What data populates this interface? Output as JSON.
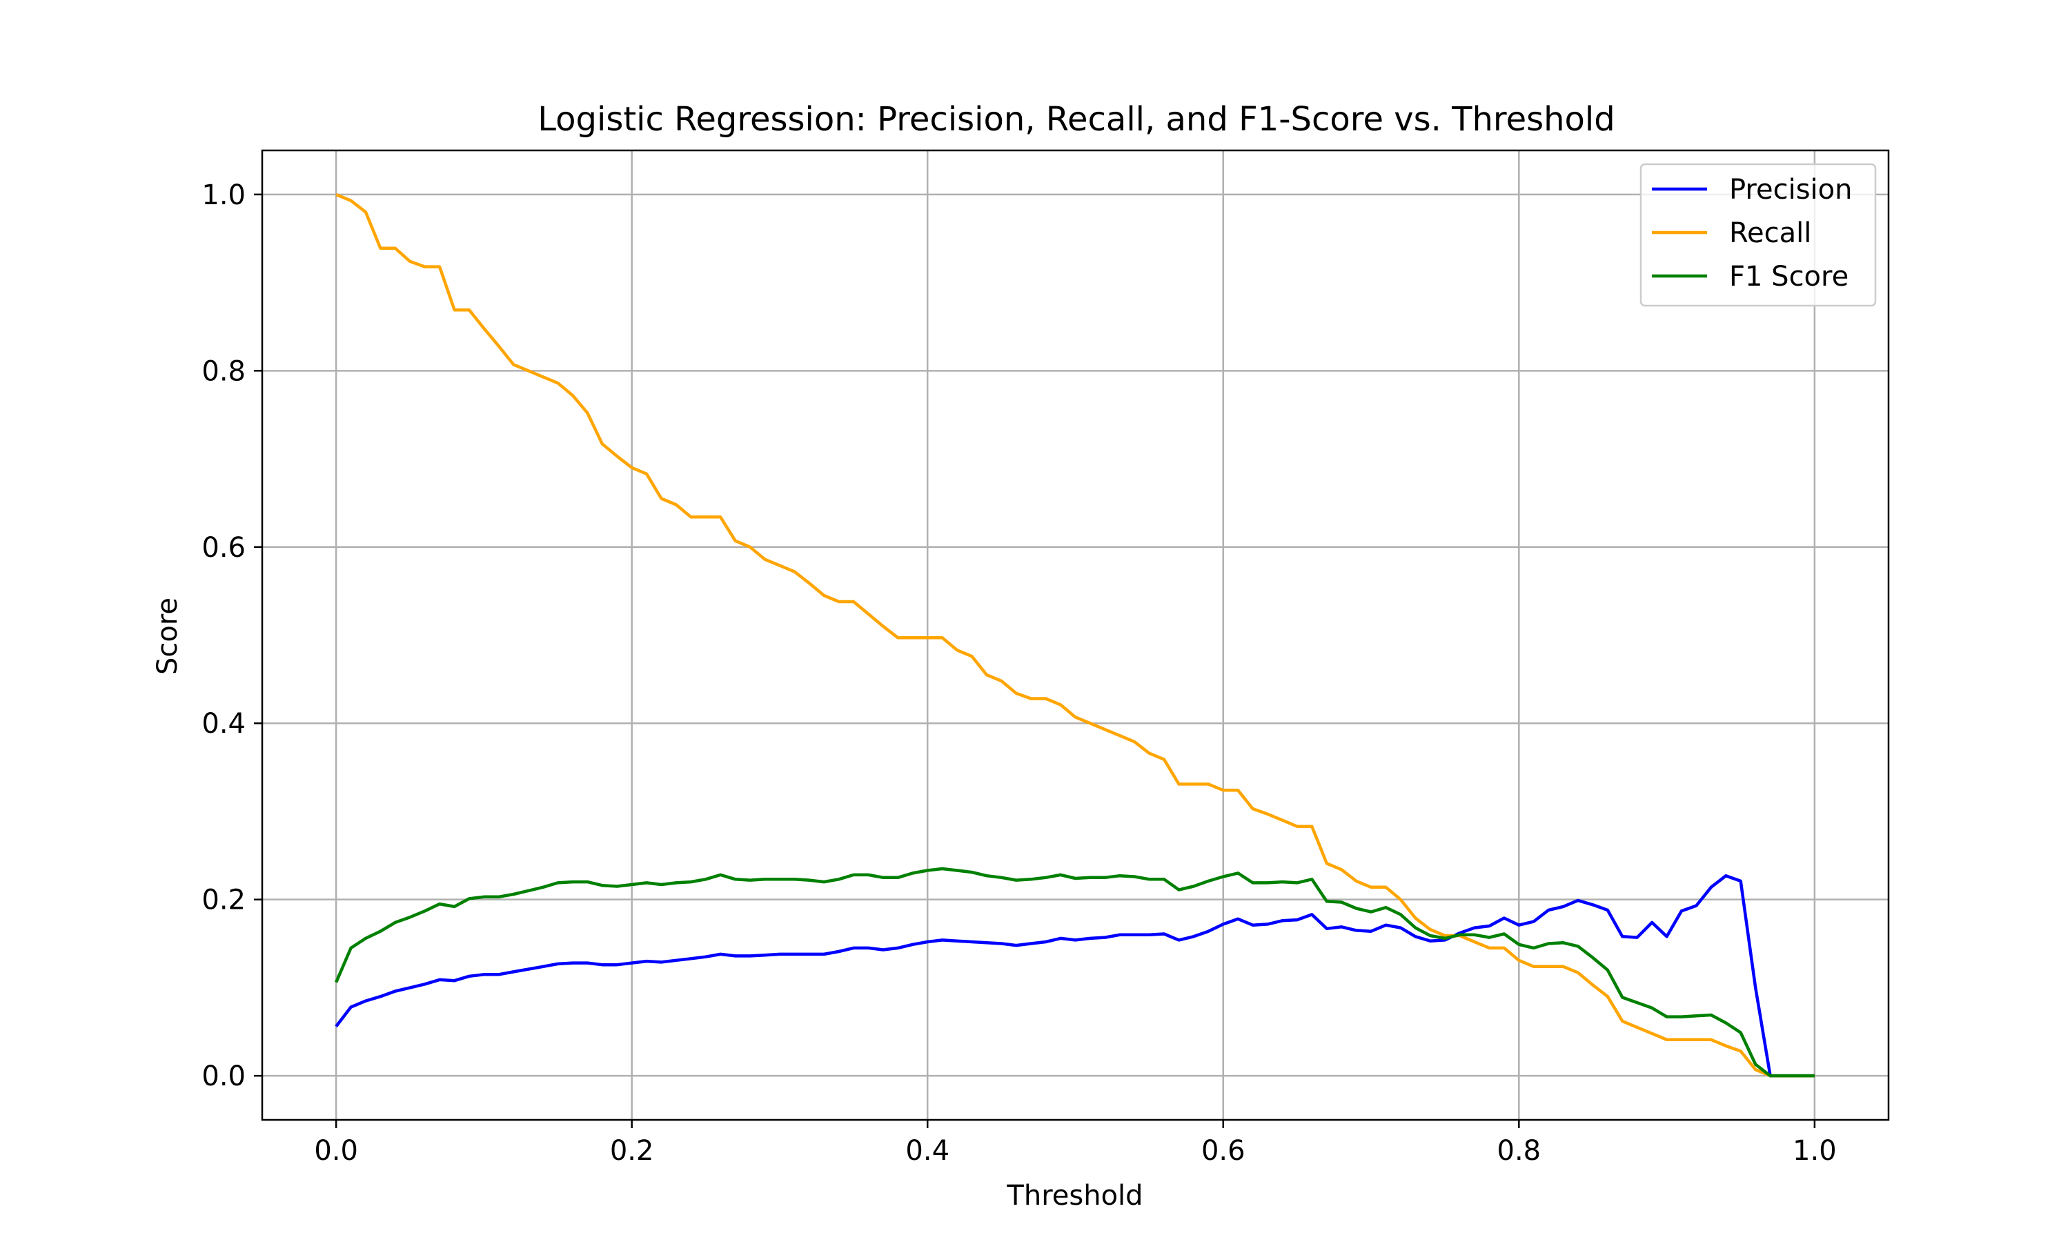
{
  "chart_data": {
    "type": "line",
    "title": "Logistic Regression: Precision, Recall, and F1-Score vs. Threshold",
    "xlabel": "Threshold",
    "ylabel": "Score",
    "xlim": [
      -0.05,
      1.05
    ],
    "ylim": [
      -0.05,
      1.05
    ],
    "xticks": [
      "0.0",
      "0.2",
      "0.4",
      "0.6",
      "0.8",
      "1.0"
    ],
    "yticks": [
      "0.0",
      "0.2",
      "0.4",
      "0.6",
      "0.8",
      "1.0"
    ],
    "grid": true,
    "legend_position": "top-right",
    "x": [
      0.0,
      0.01,
      0.02,
      0.03,
      0.04,
      0.05,
      0.06,
      0.07,
      0.08,
      0.09,
      0.1,
      0.11,
      0.12,
      0.13,
      0.14,
      0.15,
      0.16,
      0.17,
      0.18,
      0.19,
      0.2,
      0.21,
      0.22,
      0.23,
      0.24,
      0.25,
      0.26,
      0.27,
      0.28,
      0.29,
      0.3,
      0.31,
      0.32,
      0.33,
      0.34,
      0.35,
      0.36,
      0.37,
      0.38,
      0.39,
      0.4,
      0.41,
      0.42,
      0.43,
      0.44,
      0.45,
      0.46,
      0.47,
      0.48,
      0.49,
      0.5,
      0.51,
      0.52,
      0.53,
      0.54,
      0.55,
      0.56,
      0.57,
      0.58,
      0.59,
      0.6,
      0.61,
      0.62,
      0.63,
      0.64,
      0.65,
      0.66,
      0.67,
      0.68,
      0.69,
      0.7,
      0.71,
      0.72,
      0.73,
      0.74,
      0.75,
      0.76,
      0.77,
      0.78,
      0.79,
      0.8,
      0.81,
      0.82,
      0.83,
      0.84,
      0.85,
      0.86,
      0.87,
      0.88,
      0.89,
      0.9,
      0.91,
      0.92,
      0.93,
      0.94,
      0.95,
      0.96,
      0.97,
      0.98,
      0.99,
      1.0
    ],
    "series": [
      {
        "name": "Precision",
        "color": "#0000ff",
        "values": [
          0.056,
          0.078,
          0.085,
          0.09,
          0.096,
          0.1,
          0.104,
          0.109,
          0.108,
          0.113,
          0.115,
          0.115,
          0.118,
          0.121,
          0.124,
          0.127,
          0.128,
          0.128,
          0.126,
          0.126,
          0.128,
          0.13,
          0.129,
          0.131,
          0.133,
          0.135,
          0.138,
          0.136,
          0.136,
          0.137,
          0.138,
          0.138,
          0.138,
          0.138,
          0.141,
          0.145,
          0.145,
          0.143,
          0.145,
          0.149,
          0.152,
          0.154,
          0.153,
          0.152,
          0.151,
          0.15,
          0.148,
          0.15,
          0.152,
          0.156,
          0.154,
          0.156,
          0.157,
          0.16,
          0.16,
          0.16,
          0.161,
          0.154,
          0.158,
          0.164,
          0.172,
          0.178,
          0.171,
          0.172,
          0.176,
          0.177,
          0.183,
          0.167,
          0.169,
          0.165,
          0.164,
          0.171,
          0.168,
          0.158,
          0.153,
          0.154,
          0.162,
          0.168,
          0.17,
          0.179,
          0.171,
          0.175,
          0.188,
          0.192,
          0.199,
          0.194,
          0.188,
          0.158,
          0.157,
          0.174,
          0.158,
          0.187,
          0.193,
          0.214,
          0.227,
          0.221,
          0.1,
          0.0,
          0.0,
          0.0,
          0.0
        ]
      },
      {
        "name": "Recall",
        "color": "#ffa500",
        "values": [
          1.0,
          0.993,
          0.98,
          0.939,
          0.939,
          0.924,
          0.918,
          0.918,
          0.869,
          0.869,
          0.848,
          0.828,
          0.807,
          0.8,
          0.793,
          0.786,
          0.772,
          0.752,
          0.717,
          0.703,
          0.69,
          0.683,
          0.655,
          0.648,
          0.634,
          0.634,
          0.634,
          0.607,
          0.6,
          0.586,
          0.579,
          0.572,
          0.559,
          0.545,
          0.538,
          0.538,
          0.524,
          0.51,
          0.497,
          0.497,
          0.497,
          0.497,
          0.483,
          0.476,
          0.455,
          0.448,
          0.434,
          0.428,
          0.428,
          0.421,
          0.407,
          0.4,
          0.393,
          0.386,
          0.379,
          0.366,
          0.359,
          0.331,
          0.331,
          0.331,
          0.324,
          0.324,
          0.303,
          0.297,
          0.29,
          0.283,
          0.283,
          0.241,
          0.234,
          0.221,
          0.214,
          0.214,
          0.2,
          0.179,
          0.166,
          0.159,
          0.159,
          0.152,
          0.145,
          0.145,
          0.131,
          0.124,
          0.124,
          0.124,
          0.117,
          0.103,
          0.09,
          0.062,
          0.055,
          0.048,
          0.041,
          0.041,
          0.041,
          0.041,
          0.034,
          0.028,
          0.007,
          0.0,
          0.0,
          0.0,
          0.0
        ]
      },
      {
        "name": "F1 Score",
        "color": "#008000",
        "values": [
          0.106,
          0.145,
          0.156,
          0.164,
          0.174,
          0.18,
          0.187,
          0.195,
          0.192,
          0.201,
          0.203,
          0.203,
          0.206,
          0.21,
          0.214,
          0.219,
          0.22,
          0.22,
          0.216,
          0.215,
          0.217,
          0.219,
          0.217,
          0.219,
          0.22,
          0.223,
          0.228,
          0.223,
          0.222,
          0.223,
          0.223,
          0.223,
          0.222,
          0.22,
          0.223,
          0.228,
          0.228,
          0.225,
          0.225,
          0.23,
          0.233,
          0.235,
          0.233,
          0.231,
          0.227,
          0.225,
          0.222,
          0.223,
          0.225,
          0.228,
          0.224,
          0.225,
          0.225,
          0.227,
          0.226,
          0.223,
          0.223,
          0.211,
          0.215,
          0.221,
          0.226,
          0.23,
          0.219,
          0.219,
          0.22,
          0.219,
          0.223,
          0.198,
          0.197,
          0.19,
          0.186,
          0.191,
          0.183,
          0.168,
          0.159,
          0.156,
          0.16,
          0.16,
          0.157,
          0.161,
          0.149,
          0.145,
          0.15,
          0.151,
          0.147,
          0.134,
          0.12,
          0.089,
          0.083,
          0.077,
          0.067,
          0.067,
          0.068,
          0.069,
          0.06,
          0.049,
          0.013,
          0.0,
          0.0,
          0.0,
          0.0
        ]
      }
    ]
  }
}
